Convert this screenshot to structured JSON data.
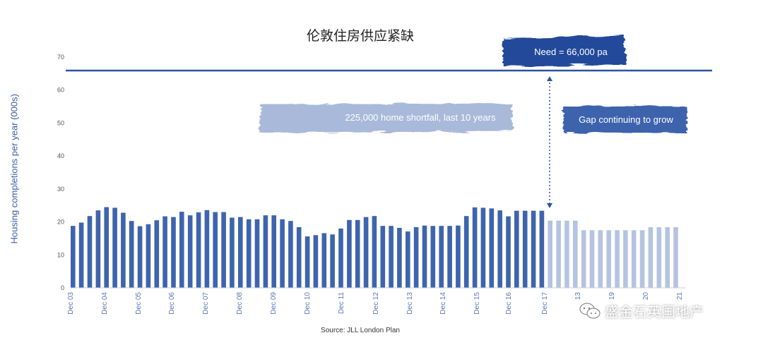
{
  "title": "伦敦住房供应紧缺",
  "source": "Source: JLL London Plan",
  "watermark": "盛金石英国地产",
  "colors": {
    "actual": "#3e64ad",
    "forecast": "#b4c4e0",
    "need_line": "#2b53a0",
    "banner_dark": "#24489a",
    "banner_mid": "#3e64ad",
    "banner_light": "#a9b9d9"
  },
  "chart_data": {
    "type": "bar",
    "ylabel": "Housing completions per year (000s)",
    "ylim": [
      0,
      70
    ],
    "yticks": [
      0,
      10,
      20,
      30,
      40,
      50,
      60,
      70
    ],
    "grid": false,
    "x_tick_labels": [
      "Dec 03",
      "Dec 04",
      "Dec 05",
      "Dec 06",
      "Dec 07",
      "Dec 08",
      "Dec 09",
      "Dec 10",
      "Dec 11",
      "Dec 12",
      "Dec 13",
      "Dec 14",
      "Dec 15",
      "Dec 16",
      "Dec 17",
      "13",
      "19",
      "20",
      "21"
    ],
    "series": [
      {
        "name": "actual",
        "values": [
          18.8,
          19.8,
          21.8,
          23.5,
          24.5,
          24.3,
          22.8,
          20.3,
          18.7,
          19.3,
          20.5,
          21.7,
          21.5,
          23.1,
          22.0,
          22.9,
          23.6,
          23.0,
          23.0,
          21.3,
          21.5,
          20.8,
          20.8,
          22.0,
          22.0,
          20.8,
          20.3,
          18.4,
          15.6,
          16.0,
          16.6,
          16.2,
          18.0,
          20.6,
          20.6,
          21.5,
          21.8,
          18.8,
          18.8,
          18.2,
          17.1,
          18.4,
          18.9,
          18.8,
          18.8,
          18.8,
          18.9,
          21.8,
          24.4,
          24.3,
          24.1,
          23.5,
          21.7,
          23.4,
          23.4,
          23.4,
          23.4
        ]
      },
      {
        "name": "forecast",
        "values": [
          20.4,
          20.4,
          20.4,
          20.4,
          17.5,
          17.5,
          17.5,
          17.5,
          17.5,
          17.5,
          17.5,
          17.5,
          18.4,
          18.4,
          18.4,
          18.4
        ]
      }
    ],
    "need_line": {
      "value": 66
    },
    "annotations": {
      "need": "Need = 66,000 pa",
      "shortfall": "225,000 home shortfall, last 10 years",
      "gap": "Gap continuing to grow"
    }
  }
}
